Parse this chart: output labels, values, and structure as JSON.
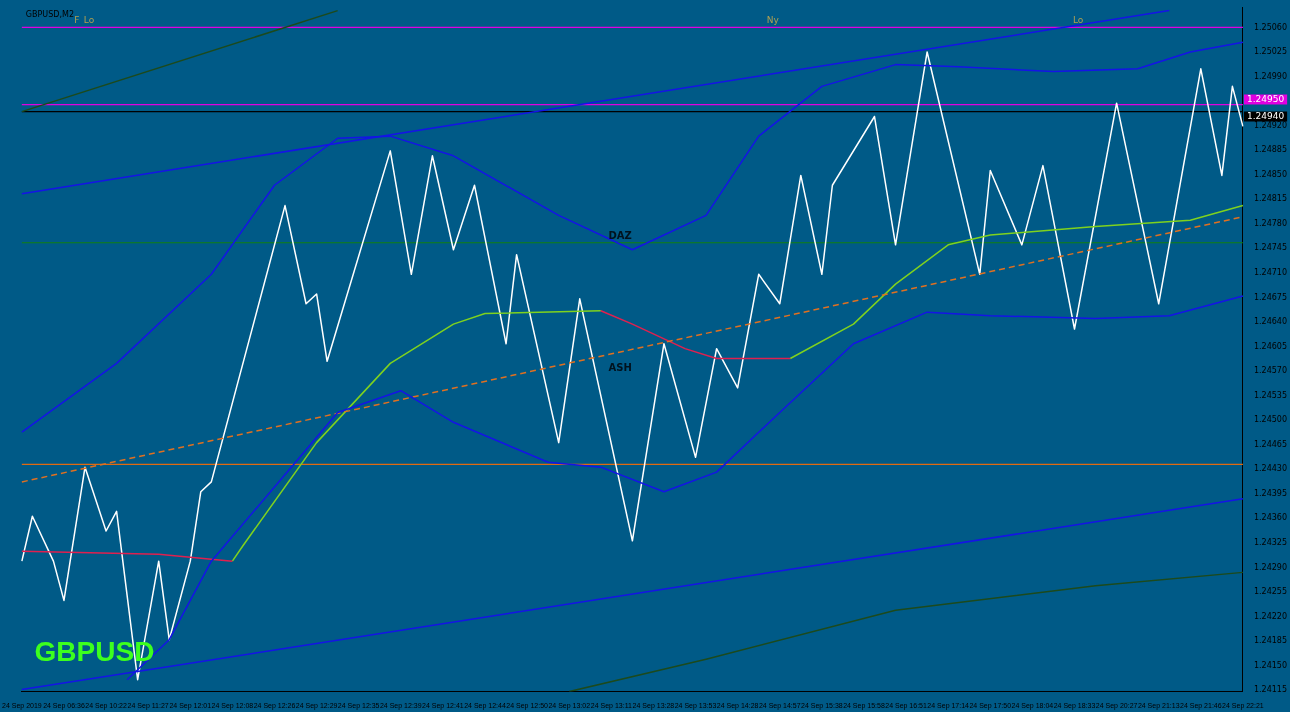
{
  "chart_data": {
    "type": "line",
    "title": "GBPUSD,M2",
    "marker": "none",
    "grid": false,
    "legend": false,
    "categories": [
      "24 Sep 2019",
      null,
      null,
      null,
      "24 Sep 06:36",
      null,
      null,
      null,
      "24 Sep 10:22",
      null,
      null,
      null,
      "24 Sep 11:27",
      null,
      null,
      null,
      "24 Sep 12:01",
      null,
      null,
      null,
      "24 Sep 12:08",
      null,
      null,
      null,
      "24 Sep 12:26",
      null,
      null,
      null,
      "24 Sep 12:29",
      null,
      null,
      null,
      "24 Sep 12:35",
      null,
      null,
      null,
      "24 Sep 12:39",
      null,
      null,
      null,
      "24 Sep 12:41",
      null,
      null,
      null,
      "24 Sep 12:44",
      null,
      null,
      null,
      "24 Sep 12:50",
      null,
      null,
      null,
      "24 Sep 13:02",
      null,
      null,
      null,
      "24 Sep 13:11",
      null,
      null,
      null,
      "24 Sep 13:28",
      null,
      null,
      null,
      "24 Sep 13:53",
      null,
      null,
      null,
      "24 Sep 14:28",
      null,
      null,
      null,
      "24 Sep 14:57",
      null,
      null,
      null,
      "24 Sep 15:38",
      null,
      null,
      null,
      "24 Sep 15:58",
      null,
      null,
      null,
      "24 Sep 16:51",
      null,
      null,
      null,
      "24 Sep 17:14",
      null,
      null,
      null,
      "24 Sep 17:50",
      null,
      null,
      null,
      "24 Sep 18:04",
      null,
      null,
      null,
      "24 Sep 18:33",
      null,
      null,
      null,
      "24 Sep 20:27",
      null,
      null,
      null,
      "24 Sep 21:13",
      null,
      null,
      null,
      "24 Sep 21:46",
      null,
      null,
      null,
      "24 Sep 22:21"
    ],
    "ylim": [
      1.24113,
      1.25088
    ],
    "yticks": [
      {
        "value": 1.24115,
        "label": "1.24115"
      },
      {
        "value": 1.2415,
        "label": "1.24150"
      },
      {
        "value": 1.24185,
        "label": "1.24185"
      },
      {
        "value": 1.2422,
        "label": "1.24220"
      },
      {
        "value": 1.24255,
        "label": "1.24255"
      },
      {
        "value": 1.2429,
        "label": "1.24290"
      },
      {
        "value": 1.24325,
        "label": "1.24325"
      },
      {
        "value": 1.2436,
        "label": "1.24360"
      },
      {
        "value": 1.24395,
        "label": "1.24395"
      },
      {
        "value": 1.2443,
        "label": "1.24430"
      },
      {
        "value": 1.24465,
        "label": "1.24465"
      },
      {
        "value": 1.245,
        "label": "1.24500"
      },
      {
        "value": 1.24535,
        "label": "1.24535"
      },
      {
        "value": 1.2457,
        "label": "1.24570"
      },
      {
        "value": 1.24605,
        "label": "1.24605"
      },
      {
        "value": 1.2464,
        "label": "1.24640"
      },
      {
        "value": 1.24675,
        "label": "1.24675"
      },
      {
        "value": 1.2471,
        "label": "1.24710"
      },
      {
        "value": 1.24745,
        "label": "1.24745"
      },
      {
        "value": 1.2478,
        "label": "1.24780"
      },
      {
        "value": 1.24815,
        "label": "1.24815"
      },
      {
        "value": 1.2485,
        "label": "1.24850"
      },
      {
        "value": 1.24885,
        "label": "1.24885"
      },
      {
        "value": 1.2492,
        "label": "1.24920"
      },
      {
        "value": 1.2499,
        "label": "1.24990"
      },
      {
        "value": 1.25025,
        "label": "1.25025"
      },
      {
        "value": 1.2506,
        "label": "1.25060"
      }
    ],
    "series": [
      {
        "color": "#1c4a1c",
        "values": [
          1.2494,
          null,
          null,
          null,
          null,
          null,
          null,
          null,
          null,
          null,
          null,
          null,
          null,
          null,
          null,
          null,
          null,
          null,
          null,
          null,
          null,
          null,
          null,
          null,
          null,
          null,
          null,
          null,
          null,
          null,
          1.25084,
          null,
          null,
          null,
          null,
          null,
          null,
          null,
          null,
          null,
          null,
          null,
          null,
          null,
          null,
          null,
          null,
          null,
          null,
          null,
          null,
          null,
          null,
          null,
          null,
          null,
          null,
          null,
          null,
          null,
          null,
          null,
          null,
          null,
          null,
          null,
          null,
          null,
          null,
          null,
          null,
          null,
          null,
          null,
          null,
          null,
          null,
          null,
          null,
          null,
          null,
          null,
          null,
          null,
          null,
          null,
          null,
          null,
          null,
          null,
          null,
          null,
          null,
          null,
          null,
          null,
          null,
          null,
          null,
          null,
          null,
          null,
          null,
          null,
          null,
          null,
          null,
          null,
          null,
          null,
          null,
          null,
          null,
          null,
          null,
          null,
          null
        ]
      },
      {
        "color": "#1c4a1c",
        "values": [
          null,
          null,
          null,
          null,
          null,
          null,
          null,
          null,
          null,
          null,
          null,
          null,
          null,
          null,
          null,
          null,
          null,
          null,
          null,
          null,
          null,
          null,
          null,
          null,
          null,
          null,
          null,
          null,
          null,
          null,
          null,
          null,
          null,
          null,
          null,
          null,
          null,
          null,
          null,
          null,
          null,
          null,
          null,
          null,
          null,
          null,
          null,
          null,
          null,
          null,
          null,
          null,
          1.24113,
          null,
          null,
          null,
          null,
          null,
          null,
          null,
          null,
          null,
          null,
          null,
          null,
          1.24159,
          null,
          null,
          null,
          null,
          null,
          null,
          null,
          null,
          null,
          null,
          null,
          null,
          null,
          null,
          null,
          null,
          null,
          1.24229,
          null,
          null,
          null,
          null,
          null,
          null,
          null,
          null,
          null,
          null,
          null,
          null,
          null,
          null,
          null,
          null,
          null,
          null,
          1.24264,
          null,
          null,
          null,
          null,
          null,
          null,
          null,
          null,
          null,
          null,
          null,
          null,
          null,
          1.24283
        ]
      },
      {
        "color": "#1414e6",
        "values": [
          1.24823,
          null,
          null,
          null,
          null,
          null,
          null,
          null,
          null,
          null,
          null,
          null,
          null,
          null,
          null,
          null,
          null,
          null,
          null,
          null,
          null,
          null,
          null,
          null,
          null,
          null,
          null,
          null,
          null,
          null,
          null,
          null,
          null,
          null,
          null,
          null,
          null,
          null,
          null,
          null,
          null,
          null,
          null,
          null,
          null,
          null,
          null,
          null,
          null,
          null,
          null,
          null,
          null,
          null,
          null,
          null,
          null,
          null,
          null,
          null,
          null,
          null,
          null,
          null,
          null,
          null,
          null,
          null,
          null,
          null,
          null,
          null,
          null,
          null,
          null,
          null,
          null,
          null,
          null,
          null,
          null,
          null,
          null,
          null,
          null,
          null,
          null,
          null,
          null,
          null,
          null,
          null,
          null,
          null,
          null,
          null,
          null,
          null,
          null,
          null,
          null,
          null,
          null,
          null,
          null,
          null,
          null,
          null,
          null,
          1.25084,
          null,
          null,
          null,
          null,
          null,
          null,
          null
        ]
      },
      {
        "color": "#1414e6",
        "values": [
          1.24116,
          null,
          null,
          null,
          null,
          null,
          null,
          null,
          null,
          null,
          null,
          null,
          null,
          null,
          null,
          null,
          null,
          null,
          null,
          null,
          null,
          null,
          null,
          null,
          null,
          null,
          null,
          null,
          null,
          null,
          null,
          null,
          null,
          null,
          null,
          null,
          null,
          null,
          null,
          null,
          null,
          null,
          null,
          null,
          null,
          null,
          null,
          null,
          null,
          null,
          null,
          null,
          null,
          null,
          null,
          null,
          null,
          null,
          null,
          null,
          null,
          null,
          null,
          null,
          null,
          null,
          null,
          null,
          null,
          null,
          null,
          null,
          null,
          null,
          null,
          null,
          null,
          null,
          null,
          null,
          null,
          null,
          null,
          null,
          null,
          null,
          null,
          null,
          null,
          null,
          null,
          null,
          null,
          null,
          null,
          null,
          null,
          null,
          null,
          null,
          null,
          null,
          null,
          null,
          null,
          null,
          null,
          null,
          null,
          null,
          null,
          null,
          null,
          null,
          null,
          null,
          1.24388
        ]
      },
      {
        "color": "#1414e6",
        "values": [
          1.24483,
          null,
          null,
          null,
          null,
          null,
          null,
          null,
          null,
          1.24581,
          null,
          null,
          null,
          null,
          null,
          null,
          null,
          null,
          1.24708,
          null,
          null,
          null,
          null,
          null,
          1.24835,
          null,
          null,
          null,
          null,
          null,
          1.24902,
          null,
          null,
          null,
          null,
          1.24905,
          null,
          null,
          null,
          null,
          null,
          1.24877,
          null,
          null,
          null,
          null,
          null,
          null,
          null,
          null,
          null,
          1.24792,
          null,
          null,
          null,
          null,
          null,
          null,
          1.24743,
          null,
          null,
          null,
          null,
          null,
          null,
          1.24792,
          null,
          null,
          null,
          null,
          1.24905,
          null,
          null,
          null,
          null,
          null,
          1.24976,
          null,
          null,
          null,
          null,
          null,
          null,
          1.25007,
          null,
          null,
          null,
          null,
          null,
          1.25004,
          null,
          null,
          null,
          null,
          null,
          null,
          null,
          null,
          1.24997,
          null,
          null,
          null,
          null,
          null,
          null,
          null,
          1.25001,
          null,
          null,
          null,
          null,
          1.25025,
          null,
          null,
          null,
          null,
          1.25039
        ]
      },
      {
        "color": "#1414e6",
        "values": [
          null,
          null,
          null,
          null,
          null,
          null,
          null,
          null,
          null,
          null,
          1.2413,
          null,
          null,
          null,
          1.24187,
          null,
          null,
          null,
          1.24299,
          null,
          null,
          null,
          null,
          null,
          null,
          null,
          1.2444,
          null,
          null,
          null,
          1.24511,
          null,
          null,
          null,
          null,
          null,
          1.24542,
          null,
          null,
          null,
          null,
          1.24497,
          null,
          null,
          null,
          null,
          null,
          null,
          null,
          null,
          1.2444,
          null,
          null,
          null,
          null,
          1.24433,
          null,
          null,
          null,
          null,
          null,
          1.24398,
          null,
          null,
          null,
          null,
          1.24426,
          null,
          null,
          null,
          null,
          null,
          1.24511,
          null,
          null,
          null,
          null,
          null,
          null,
          1.24609,
          null,
          null,
          null,
          null,
          null,
          null,
          1.24654,
          null,
          null,
          null,
          null,
          null,
          1.24649,
          null,
          null,
          null,
          null,
          null,
          null,
          null,
          null,
          null,
          1.24645,
          null,
          null,
          null,
          null,
          null,
          null,
          1.24649,
          null,
          null,
          null,
          null,
          null,
          null,
          1.24677
        ]
      },
      {
        "color": "#e07020",
        "line_style": "dashed",
        "values": [
          1.24412,
          null,
          null,
          null,
          null,
          null,
          null,
          null,
          null,
          null,
          null,
          null,
          null,
          null,
          null,
          null,
          null,
          null,
          null,
          null,
          null,
          null,
          null,
          null,
          null,
          null,
          null,
          null,
          null,
          null,
          null,
          null,
          null,
          null,
          null,
          null,
          null,
          null,
          null,
          null,
          null,
          null,
          null,
          null,
          null,
          null,
          null,
          null,
          null,
          null,
          null,
          null,
          null,
          null,
          null,
          null,
          null,
          null,
          null,
          null,
          null,
          null,
          null,
          null,
          null,
          null,
          null,
          null,
          null,
          null,
          null,
          null,
          null,
          null,
          null,
          null,
          null,
          null,
          null,
          null,
          null,
          null,
          null,
          null,
          null,
          null,
          null,
          null,
          null,
          null,
          null,
          null,
          null,
          null,
          null,
          null,
          null,
          null,
          null,
          null,
          null,
          null,
          null,
          null,
          null,
          null,
          null,
          null,
          null,
          null,
          null,
          null,
          null,
          null,
          null,
          null,
          1.2479
        ]
      },
      {
        "color": "#e0204f",
        "values": [
          1.24313,
          null,
          null,
          null,
          null,
          null,
          null,
          null,
          null,
          null,
          null,
          null,
          null,
          1.24309,
          null,
          null,
          null,
          null,
          null,
          null,
          1.24299,
          null,
          null,
          null,
          null,
          null,
          null,
          null,
          null,
          null,
          null,
          null,
          null,
          null,
          null,
          null,
          null,
          null,
          null,
          null,
          null,
          null,
          null,
          null,
          null,
          null,
          null,
          null,
          null,
          null,
          null,
          null,
          null,
          null,
          null,
          null,
          null,
          null,
          null,
          null,
          null,
          null,
          null,
          null,
          null,
          null,
          null,
          null,
          null,
          null,
          null,
          null,
          null,
          null,
          null,
          null,
          null,
          null,
          null,
          null,
          null,
          null,
          null,
          null,
          null,
          null,
          null,
          null,
          null,
          null,
          null,
          null,
          null,
          null,
          null,
          null,
          null,
          null,
          null,
          null,
          null,
          null,
          null,
          null,
          null,
          null,
          null,
          null,
          null,
          null,
          null,
          null,
          null,
          null,
          null,
          null,
          null
        ]
      },
      {
        "color": "#e0204f",
        "values": [
          null,
          null,
          null,
          null,
          null,
          null,
          null,
          null,
          null,
          null,
          null,
          null,
          null,
          null,
          null,
          null,
          null,
          null,
          null,
          null,
          null,
          null,
          null,
          null,
          null,
          null,
          null,
          null,
          null,
          null,
          null,
          null,
          null,
          null,
          null,
          null,
          null,
          null,
          null,
          null,
          null,
          null,
          null,
          null,
          null,
          null,
          null,
          null,
          null,
          null,
          null,
          null,
          null,
          null,
          null,
          1.24656,
          null,
          null,
          1.24637,
          null,
          null,
          null,
          null,
          1.24602,
          null,
          null,
          1.24588,
          null,
          null,
          null,
          null,
          null,
          null,
          1.24588,
          null,
          null,
          null,
          null,
          null,
          null,
          null,
          null,
          null,
          null,
          null,
          null,
          null,
          null,
          null,
          null,
          null,
          null,
          null,
          null,
          null,
          null,
          null,
          null,
          null,
          null,
          null,
          null,
          null,
          null,
          null,
          null,
          null,
          null,
          null,
          null,
          null,
          null,
          null,
          null,
          null,
          null,
          null
        ]
      },
      {
        "color": "#7fd21e",
        "values": [
          null,
          null,
          null,
          null,
          null,
          null,
          null,
          null,
          null,
          null,
          null,
          null,
          null,
          null,
          null,
          null,
          null,
          null,
          null,
          null,
          1.24299,
          1.24321,
          null,
          null,
          null,
          null,
          null,
          null,
          1.24468,
          null,
          null,
          null,
          null,
          null,
          null,
          1.24581,
          null,
          null,
          null,
          null,
          null,
          1.24637,
          null,
          null,
          1.24652,
          null,
          null,
          null,
          null,
          null,
          null,
          null,
          null,
          null,
          null,
          1.24656,
          null,
          null,
          null,
          null,
          null,
          null,
          null,
          null,
          null,
          null,
          null,
          null,
          null,
          null,
          null,
          null,
          null,
          null,
          null,
          null,
          null,
          null,
          null,
          null,
          null,
          null,
          null,
          null,
          null,
          null,
          null,
          null,
          null,
          null,
          null,
          null,
          null,
          null,
          null,
          null,
          null,
          null,
          null,
          null,
          null,
          null,
          null,
          null,
          null,
          null,
          null,
          null,
          null,
          null,
          null,
          null,
          null,
          null,
          null,
          null,
          null
        ]
      },
      {
        "color": "#7fd21e",
        "values": [
          null,
          null,
          null,
          null,
          null,
          null,
          null,
          null,
          null,
          null,
          null,
          null,
          null,
          null,
          null,
          null,
          null,
          null,
          null,
          null,
          null,
          null,
          null,
          null,
          null,
          null,
          null,
          null,
          null,
          null,
          null,
          null,
          null,
          null,
          null,
          null,
          null,
          null,
          null,
          null,
          null,
          null,
          null,
          null,
          null,
          null,
          null,
          null,
          null,
          null,
          null,
          null,
          null,
          null,
          null,
          null,
          null,
          null,
          null,
          null,
          null,
          null,
          null,
          null,
          null,
          null,
          null,
          null,
          null,
          null,
          null,
          null,
          null,
          1.24588,
          null,
          null,
          null,
          null,
          null,
          1.24637,
          null,
          null,
          null,
          1.24694,
          null,
          null,
          null,
          null,
          1.2475,
          null,
          null,
          null,
          1.24764,
          null,
          null,
          null,
          null,
          null,
          null,
          null,
          null,
          null,
          1.24776,
          null,
          null,
          null,
          null,
          null,
          null,
          null,
          null,
          1.24785,
          null,
          null,
          null,
          null,
          1.24806
        ]
      },
      {
        "color": "#ffffff",
        "values": [
          1.24299,
          1.24363,
          null,
          1.24299,
          1.24243,
          null,
          1.24433,
          null,
          1.24342,
          1.2437,
          null,
          1.2413,
          null,
          1.24299,
          1.24187,
          null,
          1.24299,
          1.24398,
          1.24412,
          null,
          null,
          null,
          null,
          null,
          null,
          1.24806,
          null,
          1.24666,
          1.2468,
          1.24584,
          null,
          null,
          null,
          null,
          null,
          1.24884,
          null,
          1.24708,
          null,
          1.24877,
          null,
          1.24743,
          null,
          1.24835,
          null,
          null,
          1.24609,
          1.24736,
          null,
          null,
          null,
          1.24468,
          null,
          1.24673,
          null,
          null,
          null,
          null,
          1.24328,
          null,
          null,
          1.24609,
          null,
          null,
          1.24447,
          null,
          1.24602,
          null,
          1.24546,
          null,
          1.24708,
          null,
          1.24666,
          null,
          1.24849,
          null,
          1.24708,
          1.24835,
          null,
          null,
          null,
          1.24933,
          null,
          1.2475,
          null,
          null,
          1.25025,
          null,
          null,
          null,
          null,
          1.24708,
          1.24856,
          null,
          null,
          1.2475,
          null,
          1.24863,
          null,
          null,
          1.2463,
          null,
          null,
          null,
          1.24952,
          null,
          null,
          null,
          1.24666,
          null,
          null,
          null,
          1.25001,
          null,
          1.24849,
          1.24976,
          1.24919
        ]
      }
    ],
    "ref_lines": [
      {
        "axis": "y",
        "value": 1.2506,
        "color": "#e000e0"
      },
      {
        "axis": "y",
        "value": 1.2495,
        "label": "1.24950",
        "color": "#e000e0"
      },
      {
        "axis": "y",
        "value": 1.2494,
        "label": "1.24940",
        "color": "#000000"
      },
      {
        "axis": "y",
        "value": 1.24753,
        "color": "#128012"
      },
      {
        "axis": "y",
        "value": 1.24437,
        "color": "#e06a10"
      }
    ],
    "annotations": [
      "GBPUSD",
      "DAZ",
      "ASH",
      "F",
      "Lo",
      "Ny",
      "Lo"
    ]
  }
}
